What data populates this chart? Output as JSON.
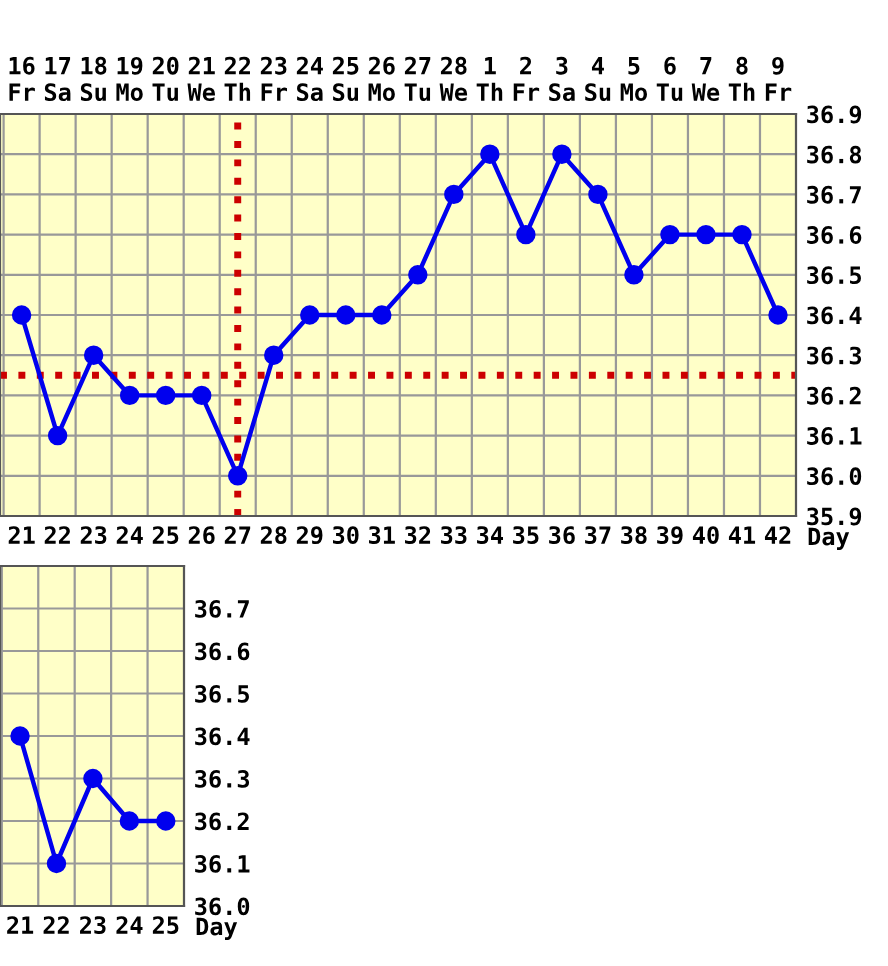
{
  "chart_data": [
    {
      "type": "line",
      "categories": [
        "21",
        "22",
        "23",
        "24",
        "25",
        "26",
        "27",
        "28",
        "29",
        "30",
        "31",
        "32",
        "33",
        "34",
        "35",
        "36",
        "37",
        "38",
        "39",
        "40",
        "41",
        "42"
      ],
      "xlabel": "Day",
      "series": [
        {
          "color": "#0000ee",
          "values": [
            36.4,
            36.1,
            36.3,
            36.2,
            36.2,
            36.2,
            36.0,
            36.3,
            36.4,
            36.4,
            36.4,
            36.5,
            36.7,
            36.8,
            36.6,
            36.8,
            36.7,
            36.5,
            36.6,
            36.6,
            36.6,
            36.4
          ]
        }
      ],
      "annotations": [
        "16\nFr",
        "17\nSa",
        "18\nSu",
        "19\nMo",
        "20\nTu",
        "21\nWe",
        "22\nTh",
        "23\nFr",
        "24\nSa",
        "25\nSu",
        "26\nMo",
        "27\nTu",
        "28\nWe",
        "1\nTh",
        "2\nFr",
        "3\nSa",
        "4\nSu",
        "5\nMo",
        "6\nTu",
        "7\nWe",
        "8\nTh",
        "9\nFr"
      ],
      "ylim": [
        35.9,
        36.9
      ],
      "yticks": [
        {
          "value": 35.9,
          "label": "35.9"
        },
        {
          "value": 36.0,
          "label": "36.0"
        },
        {
          "value": 36.1,
          "label": "36.1"
        },
        {
          "value": 36.2,
          "label": "36.2"
        },
        {
          "value": 36.3,
          "label": "36.3"
        },
        {
          "value": 36.4,
          "label": "36.4"
        },
        {
          "value": 36.5,
          "label": "36.5"
        },
        {
          "value": 36.6,
          "label": "36.6"
        },
        {
          "value": 36.7,
          "label": "36.7"
        },
        {
          "value": 36.8,
          "label": "36.8"
        },
        {
          "value": 36.9,
          "label": "36.9"
        }
      ],
      "ref_lines": [
        {
          "axis": "y",
          "value": 36.25,
          "color": "#cc0000",
          "line_style": "dotted"
        },
        {
          "axis": "x",
          "value": "27",
          "color": "#cc0000",
          "line_style": "dotted"
        }
      ],
      "grid": true,
      "marker": "circle",
      "line_style": "solid"
    },
    {
      "type": "line",
      "categories": [
        "21",
        "22",
        "23",
        "24",
        "25"
      ],
      "xlabel": "Day",
      "series": [
        {
          "color": "#0000ee",
          "values": [
            36.4,
            36.1,
            36.3,
            36.2,
            36.2
          ]
        }
      ],
      "ylim": [
        36.0,
        36.8
      ],
      "yticks": [
        {
          "value": 36.0,
          "label": "36.0"
        },
        {
          "value": 36.1,
          "label": "36.1"
        },
        {
          "value": 36.2,
          "label": "36.2"
        },
        {
          "value": 36.3,
          "label": "36.3"
        },
        {
          "value": 36.4,
          "label": "36.4"
        },
        {
          "value": 36.5,
          "label": "36.5"
        },
        {
          "value": 36.6,
          "label": "36.6"
        },
        {
          "value": 36.7,
          "label": "36.7"
        }
      ],
      "grid": true,
      "marker": "circle",
      "line_style": "solid"
    }
  ]
}
